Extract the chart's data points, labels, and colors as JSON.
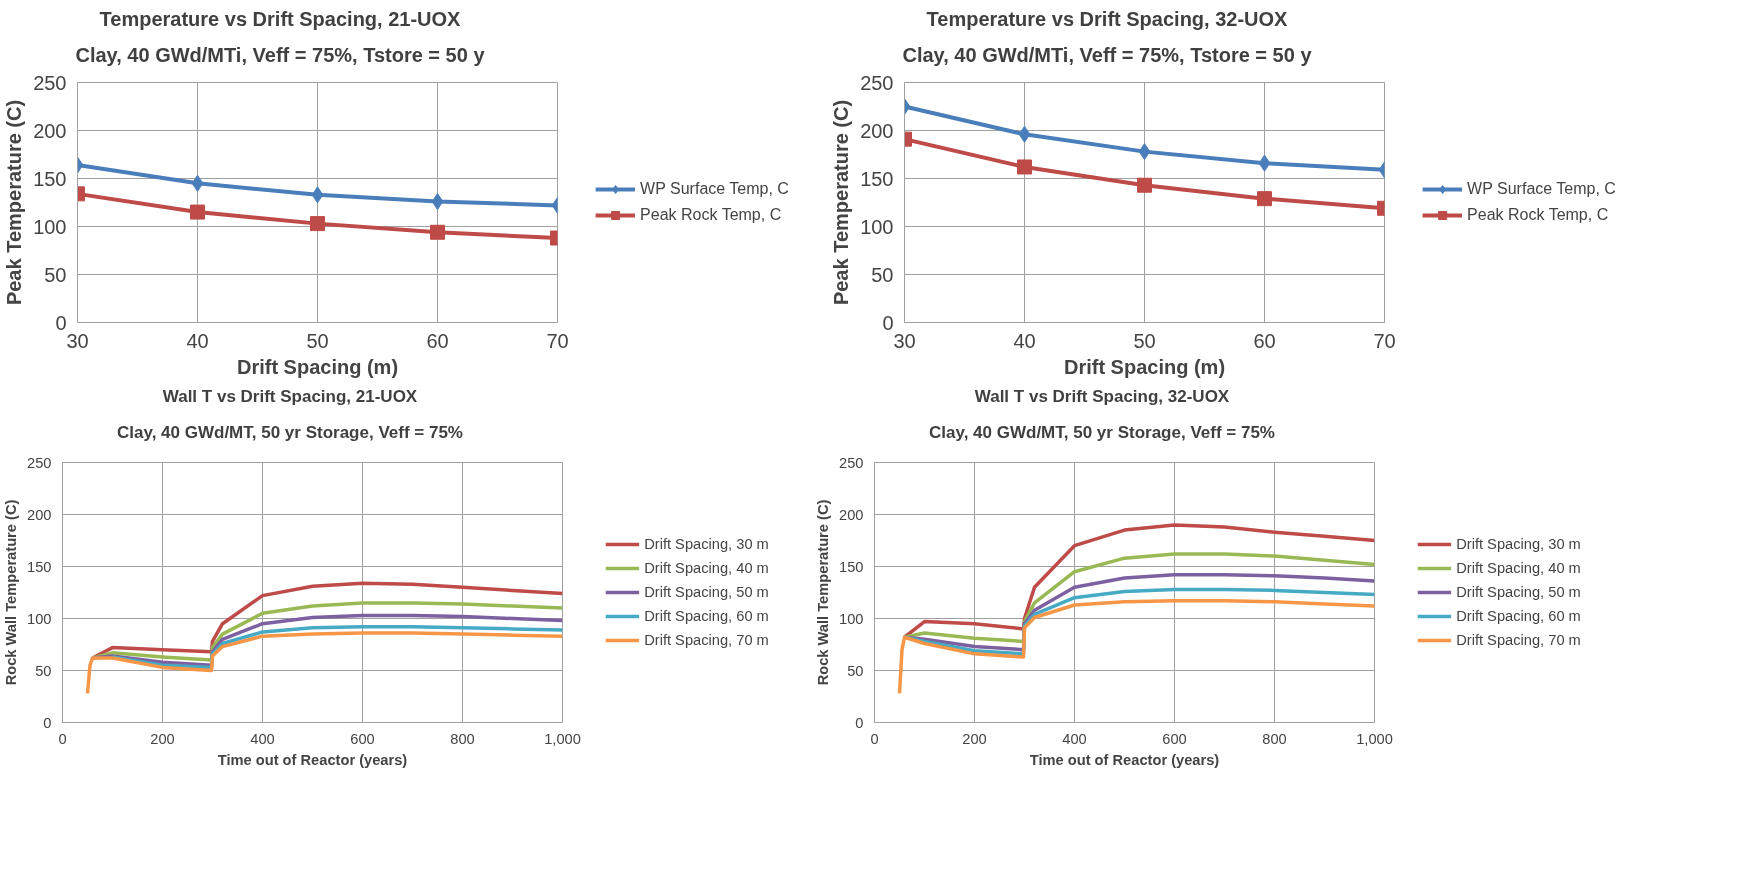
{
  "chart_data": [
    {
      "type": "line",
      "title": "Temperature vs Drift Spacing, 21-UOX",
      "subtitle": "Clay, 40 GWd/MTi, Veff = 75%, Tstore = 50 y",
      "xlabel": "Drift Spacing (m)",
      "ylabel": "Peak Temperature (C)",
      "x": [
        30,
        40,
        50,
        60,
        70
      ],
      "xlim": [
        30,
        70
      ],
      "xticks": [
        30,
        40,
        50,
        60,
        70
      ],
      "ylim": [
        0,
        250
      ],
      "yticks": [
        0,
        50,
        100,
        150,
        200,
        250
      ],
      "grid": true,
      "legend": "right",
      "line_style": "solid",
      "series": [
        {
          "name": "WP Surface Temp, C",
          "color": "#4a7ebb",
          "marker": "diamond",
          "values": [
            164,
            145,
            133,
            126,
            122
          ]
        },
        {
          "name": "Peak Rock Temp, C",
          "color": "#be4b48",
          "marker": "square",
          "values": [
            134,
            115,
            103,
            94,
            88
          ]
        }
      ]
    },
    {
      "type": "line",
      "title": "Temperature vs Drift Spacing, 32-UOX",
      "subtitle": "Clay, 40 GWd/MTi, Veff = 75%, Tstore = 50 y",
      "xlabel": "Drift Spacing (m)",
      "ylabel": "Peak Temperature (C)",
      "x": [
        30,
        40,
        50,
        60,
        70
      ],
      "xlim": [
        30,
        70
      ],
      "xticks": [
        30,
        40,
        50,
        60,
        70
      ],
      "ylim": [
        0,
        250
      ],
      "yticks": [
        0,
        50,
        100,
        150,
        200,
        250
      ],
      "grid": true,
      "legend": "right",
      "line_style": "solid",
      "series": [
        {
          "name": "WP Surface Temp, C",
          "color": "#4a7ebb",
          "marker": "diamond",
          "values": [
            225,
            196,
            178,
            166,
            159
          ]
        },
        {
          "name": "Peak Rock Temp, C",
          "color": "#be4b48",
          "marker": "square",
          "values": [
            191,
            162,
            143,
            129,
            119
          ]
        }
      ]
    },
    {
      "type": "line",
      "title": "Wall T vs Drift Spacing, 21-UOX",
      "subtitle": "Clay, 40 GWd/MT, 50 yr Storage, Veff = 75%",
      "xlabel": "Time out of Reactor (years)",
      "ylabel": "Rock Wall Temperature (C)",
      "x": [
        50,
        55,
        60,
        100,
        200,
        298,
        300,
        320,
        400,
        500,
        600,
        700,
        800,
        900,
        1000
      ],
      "xlim": [
        0,
        1000
      ],
      "xticks": [
        0,
        200,
        400,
        600,
        800,
        {
          "value": 1000,
          "label": "1,000"
        }
      ],
      "ylim": [
        0,
        250
      ],
      "yticks": [
        0,
        50,
        100,
        150,
        200,
        250
      ],
      "grid": true,
      "legend": "right",
      "marker": "none",
      "line_style": "solid",
      "series": [
        {
          "name": "Drift Spacing, 30 m",
          "color": "#be4b48",
          "values": [
            null,
            null,
            62,
            72,
            70,
            68,
            78,
            95,
            122,
            131,
            134,
            133,
            130,
            127,
            124
          ]
        },
        {
          "name": "Drift Spacing, 40 m",
          "color": "#98b954",
          "values": [
            null,
            null,
            62,
            67,
            63,
            60,
            72,
            85,
            105,
            112,
            115,
            115,
            114,
            112,
            110
          ]
        },
        {
          "name": "Drift Spacing, 50 m",
          "color": "#7d60a0",
          "values": [
            null,
            null,
            62,
            64,
            58,
            55,
            68,
            80,
            95,
            101,
            103,
            103,
            102,
            100,
            98
          ]
        },
        {
          "name": "Drift Spacing, 60 m",
          "color": "#46aac5",
          "values": [
            null,
            null,
            null,
            63,
            55,
            53,
            66,
            76,
            87,
            91,
            92,
            92,
            91,
            90,
            89
          ]
        },
        {
          "name": "Drift Spacing, 70 m",
          "color": "#f79646",
          "values": [
            28,
            55,
            62,
            62,
            53,
            50,
            64,
            73,
            83,
            85,
            86,
            86,
            85,
            84,
            83
          ]
        }
      ]
    },
    {
      "type": "line",
      "title": "Wall T vs Drift Spacing, 32-UOX",
      "subtitle": "Clay, 40 GWd/MT, 50 yr Storage, Veff = 75%",
      "xlabel": "Time out of Reactor (years)",
      "ylabel": "Rock Wall Temperature (C)",
      "x": [
        50,
        55,
        60,
        100,
        200,
        298,
        300,
        320,
        400,
        500,
        600,
        700,
        800,
        900,
        1000
      ],
      "xlim": [
        0,
        1000
      ],
      "xticks": [
        0,
        200,
        400,
        600,
        800,
        {
          "value": 1000,
          "label": "1,000"
        }
      ],
      "ylim": [
        0,
        250
      ],
      "yticks": [
        0,
        50,
        100,
        150,
        200,
        250
      ],
      "grid": true,
      "legend": "right",
      "marker": "none",
      "line_style": "solid",
      "series": [
        {
          "name": "Drift Spacing, 30 m",
          "color": "#be4b48",
          "values": [
            null,
            null,
            82,
            97,
            95,
            90,
            100,
            130,
            170,
            185,
            190,
            188,
            183,
            179,
            175
          ]
        },
        {
          "name": "Drift Spacing, 40 m",
          "color": "#98b954",
          "values": [
            null,
            null,
            82,
            86,
            81,
            78,
            97,
            115,
            145,
            158,
            162,
            162,
            160,
            156,
            152
          ]
        },
        {
          "name": "Drift Spacing, 50 m",
          "color": "#7d60a0",
          "values": [
            null,
            null,
            82,
            80,
            73,
            70,
            95,
            108,
            130,
            139,
            142,
            142,
            141,
            139,
            136
          ]
        },
        {
          "name": "Drift Spacing, 60 m",
          "color": "#46aac5",
          "values": [
            null,
            null,
            82,
            78,
            69,
            66,
            93,
            104,
            120,
            126,
            128,
            128,
            127,
            125,
            123
          ]
        },
        {
          "name": "Drift Spacing, 70 m",
          "color": "#f79646",
          "values": [
            28,
            70,
            82,
            76,
            66,
            63,
            91,
            101,
            113,
            116,
            117,
            117,
            116,
            114,
            112
          ]
        }
      ]
    }
  ]
}
